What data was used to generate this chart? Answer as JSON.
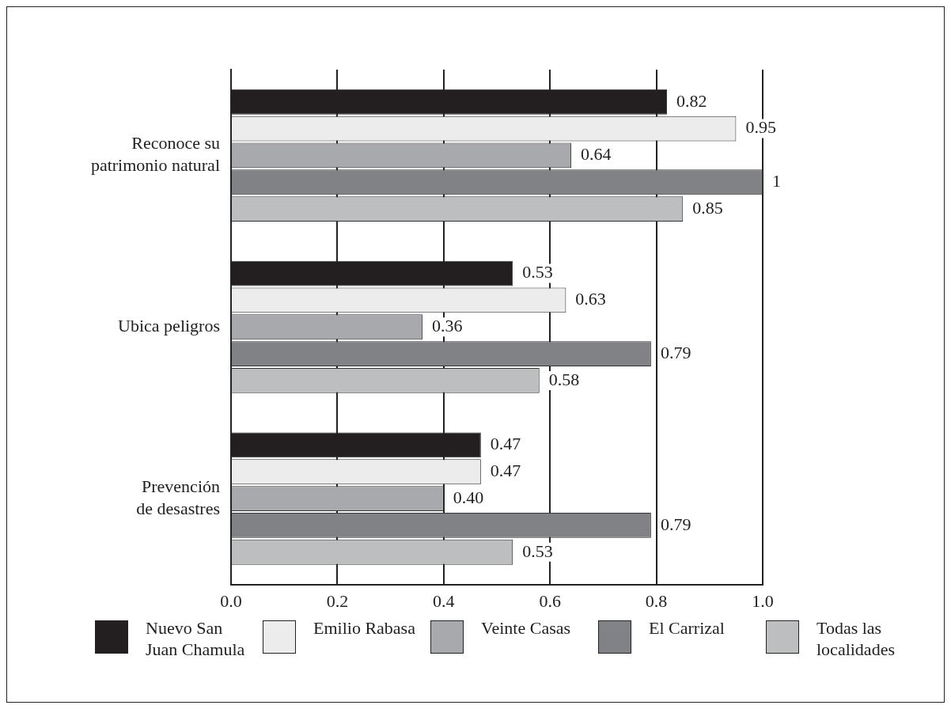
{
  "chart_data": {
    "type": "bar",
    "orientation": "horizontal",
    "categories": [
      "Reconoce su patrimonio natural",
      "Ubica peligros",
      "Prevención de desastres"
    ],
    "series": [
      {
        "name": "Nuevo San Juan Chamula",
        "color": "#231f20",
        "values": [
          0.82,
          0.53,
          0.47
        ],
        "value_labels": [
          "0.82",
          "0.53",
          "0.47"
        ]
      },
      {
        "name": "Emilio Rabasa",
        "color": "#ececed",
        "values": [
          0.95,
          0.63,
          0.47
        ],
        "value_labels": [
          "0.95",
          "0.63",
          "0.47"
        ]
      },
      {
        "name": "Veinte Casas",
        "color": "#a7a9ac",
        "values": [
          0.64,
          0.36,
          0.4
        ],
        "value_labels": [
          "0.64",
          "0.36",
          "0.40"
        ]
      },
      {
        "name": "El Carrizal",
        "color": "#808285",
        "values": [
          1,
          0.79,
          0.79
        ],
        "value_labels": [
          "1",
          "0.79",
          "0.79"
        ]
      },
      {
        "name": "Todas las localidades",
        "color": "#bcbec0",
        "values": [
          0.85,
          0.58,
          0.53
        ],
        "value_labels": [
          "0.85",
          "0.58",
          "0.53"
        ]
      }
    ],
    "xlim": [
      0,
      1.0
    ],
    "xticks": [
      {
        "value": 0,
        "label": "0.0"
      },
      {
        "value": 0.2,
        "label": "0.2"
      },
      {
        "value": 0.4,
        "label": "0.4"
      },
      {
        "value": 0.6,
        "label": "0.6"
      },
      {
        "value": 0.8,
        "label": "0.8"
      },
      {
        "value": 1.0,
        "label": "1.0"
      }
    ],
    "grid": "x",
    "legend": "bottom"
  }
}
